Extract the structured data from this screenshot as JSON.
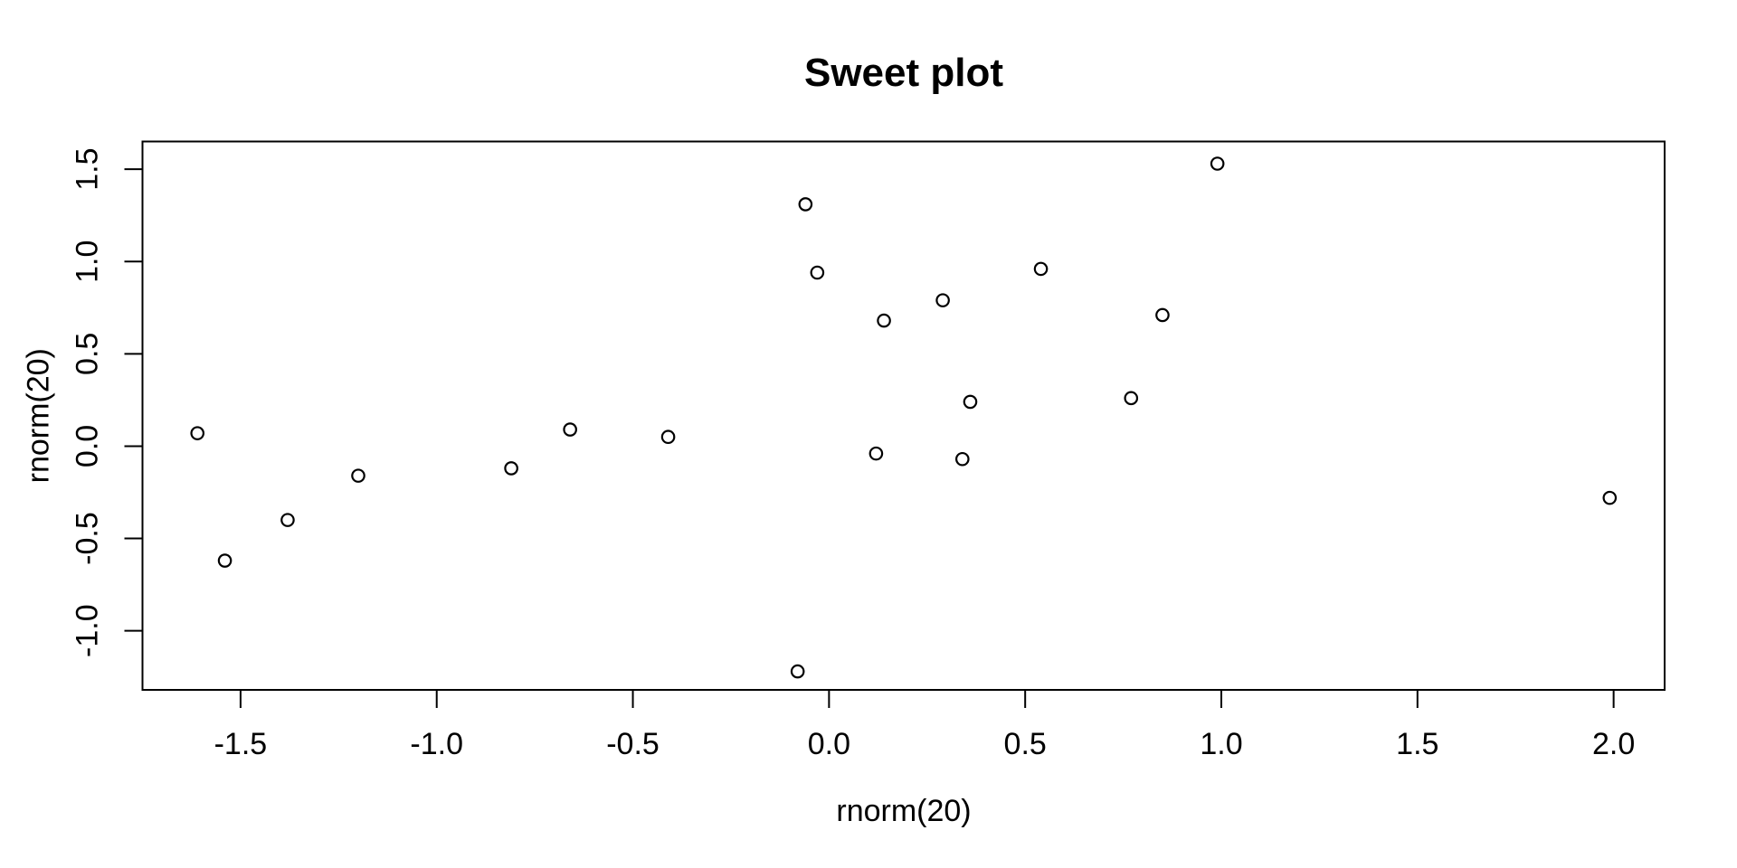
{
  "page": {
    "background": "#FFFFFF",
    "foreground": "#000000"
  },
  "chart_data": {
    "type": "scatter",
    "title": "Sweet plot",
    "xlabel": "rnorm(20)",
    "ylabel": "rnorm(20)",
    "x": [
      -1.61,
      -1.54,
      -1.38,
      -1.2,
      -0.81,
      -0.66,
      -0.41,
      -0.08,
      -0.06,
      -0.03,
      0.12,
      0.14,
      0.29,
      0.34,
      0.36,
      0.54,
      0.77,
      0.85,
      0.99,
      1.99
    ],
    "y": [
      0.07,
      -0.62,
      -0.4,
      -0.16,
      -0.12,
      0.09,
      0.05,
      -1.22,
      1.31,
      0.94,
      -0.04,
      0.68,
      0.79,
      -0.07,
      0.24,
      0.96,
      0.26,
      0.71,
      1.53,
      -0.28
    ],
    "x_ticks": {
      "values": [
        -1.5,
        -1.0,
        -0.5,
        0.0,
        0.5,
        1.0,
        1.5,
        2.0
      ],
      "labels": [
        "-1.5",
        "-1.0",
        "-0.5",
        "0.0",
        "0.5",
        "1.0",
        "1.5",
        "2.0"
      ]
    },
    "y_ticks": {
      "values": [
        -1.0,
        -0.5,
        0.0,
        0.5,
        1.0,
        1.5
      ],
      "labels": [
        "-1.0",
        "-0.5",
        "0.0",
        "0.5",
        "1.0",
        "1.5"
      ]
    },
    "xlim": [
      -1.75,
      2.13
    ],
    "ylim": [
      -1.32,
      1.65
    ],
    "grid": false,
    "legend": "none",
    "marker": {
      "shape": "open-circle",
      "color": "#000000"
    }
  }
}
